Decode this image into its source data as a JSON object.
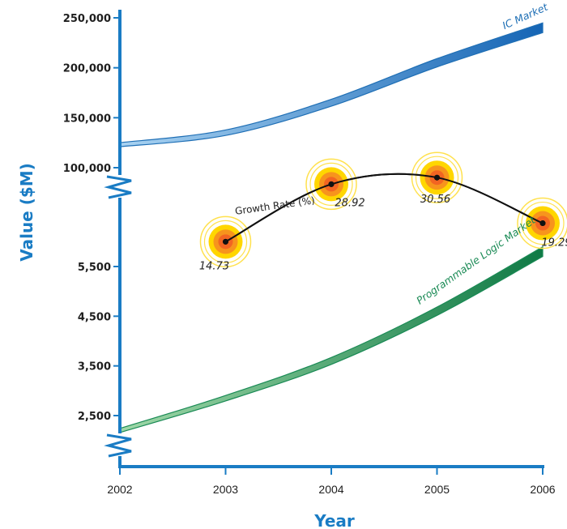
{
  "chart_data": {
    "type": "line",
    "xlabel": "Year",
    "ylabel": "Value ($M)",
    "x": [
      "2002",
      "2003",
      "2004",
      "2005",
      "2006"
    ],
    "upper_axis": {
      "ticks": [
        100000,
        150000,
        200000,
        250000
      ],
      "tick_labels": [
        "100,000",
        "150,000",
        "200,000",
        "250,000"
      ],
      "range": [
        100000,
        250000
      ]
    },
    "lower_axis": {
      "ticks": [
        2500,
        3500,
        4500,
        5500
      ],
      "tick_labels": [
        "2,500",
        "3,500",
        "4,500",
        "5,500"
      ],
      "range": [
        2500,
        5500
      ]
    },
    "axis_breaks": true,
    "series": [
      {
        "name": "IC Market",
        "axis": "upper",
        "values": [
          123000,
          135000,
          165000,
          205000,
          240000
        ],
        "color": "#1f6fb5"
      },
      {
        "name": "Programmable Logic Market",
        "axis": "lower",
        "values": [
          2200,
          2850,
          3600,
          4600,
          5800
        ],
        "color": "#1a8a55"
      }
    ],
    "growth_rate": {
      "label": "Growth Rate (%)",
      "x": [
        "2003",
        "2004",
        "2005",
        "2006"
      ],
      "values": [
        14.73,
        28.92,
        30.56,
        19.29
      ],
      "value_labels": [
        "14.73",
        "28.92",
        "30.56",
        "19.29"
      ],
      "marker_colors": [
        "#ffd600",
        "#f7941d",
        "#f26522"
      ]
    },
    "axis_color": "#1a7cc4",
    "grid": false
  }
}
